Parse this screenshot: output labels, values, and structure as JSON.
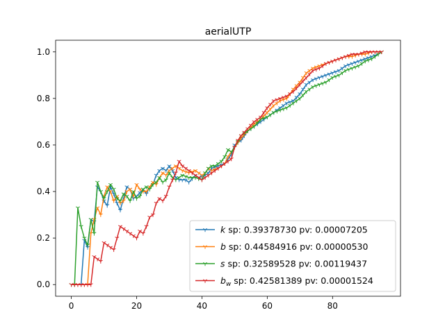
{
  "chart_data": {
    "type": "line",
    "title": "aerialUTP",
    "xlabel": "",
    "ylabel": "",
    "xlim": [
      -4.8,
      100.8
    ],
    "ylim": [
      -0.05,
      1.05
    ],
    "xticks": [
      0,
      20,
      40,
      60,
      80
    ],
    "yticks": [
      0.0,
      0.2,
      0.4,
      0.6,
      0.8,
      1.0
    ],
    "xtick_labels": [
      "0",
      "20",
      "40",
      "60",
      "80"
    ],
    "ytick_labels": [
      "0.0",
      "0.2",
      "0.4",
      "0.6",
      "0.8",
      "1.0"
    ],
    "grid": false,
    "legend_position": "lower-right",
    "marker": "tri_down",
    "series": [
      {
        "name": "k",
        "legend_label": {
          "var": "k",
          "sub": "",
          "rest": " sp: 0.39378730 pv: 0.00007205"
        },
        "color": "#1f77b4",
        "keypoints": [
          [
            0,
            0
          ],
          [
            2,
            0
          ],
          [
            3,
            0
          ],
          [
            4,
            0.19
          ],
          [
            5,
            0.16
          ],
          [
            6,
            0.28
          ],
          [
            7,
            0.27
          ],
          [
            8,
            0.42
          ],
          [
            9,
            0.4
          ],
          [
            10,
            0.36
          ],
          [
            11,
            0.34
          ],
          [
            12,
            0.42
          ],
          [
            13,
            0.39
          ],
          [
            14,
            0.35
          ],
          [
            15,
            0.32
          ],
          [
            16,
            0.37
          ],
          [
            17,
            0.42
          ],
          [
            18,
            0.41
          ],
          [
            19,
            0.37
          ],
          [
            20,
            0.38
          ],
          [
            22,
            0.41
          ],
          [
            23,
            0.39
          ],
          [
            24,
            0.42
          ],
          [
            25,
            0.43
          ],
          [
            26,
            0.47
          ],
          [
            27,
            0.49
          ],
          [
            28,
            0.5
          ],
          [
            29,
            0.49
          ],
          [
            30,
            0.51
          ],
          [
            31,
            0.49
          ],
          [
            32,
            0.46
          ],
          [
            33,
            0.45
          ],
          [
            35,
            0.45
          ],
          [
            36,
            0.44
          ],
          [
            38,
            0.47
          ],
          [
            39,
            0.46
          ],
          [
            41,
            0.47
          ],
          [
            42,
            0.48
          ],
          [
            43,
            0.5
          ],
          [
            45,
            0.51
          ],
          [
            47,
            0.52
          ],
          [
            48,
            0.54
          ],
          [
            49,
            0.56
          ],
          [
            50,
            0.6
          ],
          [
            52,
            0.62
          ],
          [
            54,
            0.66
          ],
          [
            56,
            0.68
          ],
          [
            58,
            0.7
          ],
          [
            60,
            0.72
          ],
          [
            62,
            0.74
          ],
          [
            64,
            0.76
          ],
          [
            66,
            0.78
          ],
          [
            68,
            0.79
          ],
          [
            70,
            0.82
          ],
          [
            72,
            0.86
          ],
          [
            74,
            0.88
          ],
          [
            76,
            0.89
          ],
          [
            78,
            0.9
          ],
          [
            80,
            0.91
          ],
          [
            82,
            0.92
          ],
          [
            84,
            0.94
          ],
          [
            86,
            0.95
          ],
          [
            88,
            0.96
          ],
          [
            90,
            0.97
          ],
          [
            92,
            0.98
          ],
          [
            94,
            0.99
          ],
          [
            95,
            1.0
          ]
        ]
      },
      {
        "name": "b",
        "legend_label": {
          "var": "b",
          "sub": "",
          "rest": " sp: 0.44584916 pv: 0.00000530"
        },
        "color": "#ff7f0e",
        "keypoints": [
          [
            0,
            0
          ],
          [
            4,
            0
          ],
          [
            5,
            0
          ],
          [
            6,
            0.22
          ],
          [
            7,
            0.28
          ],
          [
            8,
            0.33
          ],
          [
            9,
            0.3
          ],
          [
            10,
            0.38
          ],
          [
            11,
            0.42
          ],
          [
            12,
            0.4
          ],
          [
            13,
            0.36
          ],
          [
            14,
            0.38
          ],
          [
            15,
            0.35
          ],
          [
            16,
            0.36
          ],
          [
            17,
            0.4
          ],
          [
            18,
            0.41
          ],
          [
            19,
            0.38
          ],
          [
            20,
            0.43
          ],
          [
            21,
            0.41
          ],
          [
            22,
            0.4
          ],
          [
            23,
            0.4
          ],
          [
            24,
            0.42
          ],
          [
            25,
            0.44
          ],
          [
            26,
            0.43
          ],
          [
            27,
            0.46
          ],
          [
            28,
            0.48
          ],
          [
            29,
            0.47
          ],
          [
            30,
            0.49
          ],
          [
            32,
            0.51
          ],
          [
            34,
            0.49
          ],
          [
            36,
            0.48
          ],
          [
            38,
            0.49
          ],
          [
            39,
            0.48
          ],
          [
            40,
            0.47
          ],
          [
            41,
            0.48
          ],
          [
            42,
            0.5
          ],
          [
            43,
            0.49
          ],
          [
            45,
            0.5
          ],
          [
            47,
            0.52
          ],
          [
            48,
            0.55
          ],
          [
            49,
            0.57
          ],
          [
            50,
            0.59
          ],
          [
            52,
            0.63
          ],
          [
            54,
            0.66
          ],
          [
            56,
            0.69
          ],
          [
            58,
            0.71
          ],
          [
            60,
            0.74
          ],
          [
            62,
            0.77
          ],
          [
            64,
            0.79
          ],
          [
            66,
            0.8
          ],
          [
            68,
            0.84
          ],
          [
            70,
            0.87
          ],
          [
            72,
            0.91
          ],
          [
            74,
            0.93
          ],
          [
            76,
            0.94
          ],
          [
            78,
            0.95
          ],
          [
            80,
            0.96
          ],
          [
            82,
            0.97
          ],
          [
            84,
            0.98
          ],
          [
            86,
            0.98
          ],
          [
            88,
            0.99
          ],
          [
            90,
            0.99
          ],
          [
            92,
            1.0
          ],
          [
            95,
            1.0
          ]
        ]
      },
      {
        "name": "s",
        "legend_label": {
          "var": "s",
          "sub": "",
          "rest": " sp: 0.32589528 pv: 0.00119437"
        },
        "color": "#2ca02c",
        "keypoints": [
          [
            0,
            0
          ],
          [
            1,
            0
          ],
          [
            2,
            0.33
          ],
          [
            3,
            0.25
          ],
          [
            4,
            0.2
          ],
          [
            5,
            0.17
          ],
          [
            6,
            0.28
          ],
          [
            7,
            0.22
          ],
          [
            8,
            0.44
          ],
          [
            9,
            0.4
          ],
          [
            10,
            0.37
          ],
          [
            11,
            0.4
          ],
          [
            12,
            0.43
          ],
          [
            13,
            0.41
          ],
          [
            14,
            0.37
          ],
          [
            15,
            0.36
          ],
          [
            16,
            0.39
          ],
          [
            17,
            0.38
          ],
          [
            18,
            0.36
          ],
          [
            19,
            0.4
          ],
          [
            20,
            0.37
          ],
          [
            21,
            0.38
          ],
          [
            22,
            0.41
          ],
          [
            23,
            0.42
          ],
          [
            24,
            0.41
          ],
          [
            25,
            0.43
          ],
          [
            26,
            0.44
          ],
          [
            27,
            0.46
          ],
          [
            28,
            0.44
          ],
          [
            29,
            0.45
          ],
          [
            30,
            0.48
          ],
          [
            31,
            0.46
          ],
          [
            32,
            0.45
          ],
          [
            34,
            0.47
          ],
          [
            36,
            0.46
          ],
          [
            38,
            0.46
          ],
          [
            40,
            0.45
          ],
          [
            41,
            0.48
          ],
          [
            42,
            0.5
          ],
          [
            43,
            0.51
          ],
          [
            44,
            0.51
          ],
          [
            46,
            0.53
          ],
          [
            47,
            0.55
          ],
          [
            48,
            0.58
          ],
          [
            49,
            0.57
          ],
          [
            50,
            0.59
          ],
          [
            52,
            0.64
          ],
          [
            54,
            0.66
          ],
          [
            56,
            0.68
          ],
          [
            58,
            0.71
          ],
          [
            60,
            0.72
          ],
          [
            62,
            0.74
          ],
          [
            64,
            0.75
          ],
          [
            66,
            0.76
          ],
          [
            68,
            0.78
          ],
          [
            70,
            0.8
          ],
          [
            72,
            0.83
          ],
          [
            74,
            0.85
          ],
          [
            76,
            0.86
          ],
          [
            78,
            0.87
          ],
          [
            80,
            0.89
          ],
          [
            82,
            0.9
          ],
          [
            84,
            0.92
          ],
          [
            86,
            0.93
          ],
          [
            88,
            0.94
          ],
          [
            90,
            0.96
          ],
          [
            92,
            0.97
          ],
          [
            94,
            0.99
          ],
          [
            95,
            1.0
          ]
        ]
      },
      {
        "name": "b_w",
        "legend_label": {
          "var": "b",
          "sub": "w",
          "rest": " sp: 0.42581389 pv: 0.00001524"
        },
        "color": "#d62728",
        "keypoints": [
          [
            0,
            0
          ],
          [
            3,
            0
          ],
          [
            5,
            0
          ],
          [
            6,
            0
          ],
          [
            7,
            0.12
          ],
          [
            8,
            0.11
          ],
          [
            9,
            0.1
          ],
          [
            10,
            0.18
          ],
          [
            11,
            0.17
          ],
          [
            12,
            0.16
          ],
          [
            13,
            0.15
          ],
          [
            14,
            0.2
          ],
          [
            15,
            0.25
          ],
          [
            16,
            0.24
          ],
          [
            17,
            0.23
          ],
          [
            18,
            0.22
          ],
          [
            19,
            0.21
          ],
          [
            20,
            0.2
          ],
          [
            21,
            0.23
          ],
          [
            22,
            0.22
          ],
          [
            23,
            0.25
          ],
          [
            24,
            0.29
          ],
          [
            25,
            0.3
          ],
          [
            26,
            0.35
          ],
          [
            27,
            0.37
          ],
          [
            28,
            0.36
          ],
          [
            29,
            0.38
          ],
          [
            30,
            0.42
          ],
          [
            31,
            0.45
          ],
          [
            32,
            0.48
          ],
          [
            33,
            0.53
          ],
          [
            34,
            0.51
          ],
          [
            35,
            0.5
          ],
          [
            36,
            0.49
          ],
          [
            38,
            0.47
          ],
          [
            40,
            0.45
          ],
          [
            41,
            0.46
          ],
          [
            42,
            0.47
          ],
          [
            43,
            0.48
          ],
          [
            45,
            0.5
          ],
          [
            47,
            0.52
          ],
          [
            48,
            0.53
          ],
          [
            49,
            0.54
          ],
          [
            50,
            0.59
          ],
          [
            51,
            0.62
          ],
          [
            52,
            0.64
          ],
          [
            54,
            0.67
          ],
          [
            56,
            0.7
          ],
          [
            58,
            0.72
          ],
          [
            60,
            0.76
          ],
          [
            62,
            0.79
          ],
          [
            64,
            0.8
          ],
          [
            66,
            0.81
          ],
          [
            68,
            0.83
          ],
          [
            70,
            0.86
          ],
          [
            72,
            0.89
          ],
          [
            74,
            0.92
          ],
          [
            76,
            0.93
          ],
          [
            78,
            0.95
          ],
          [
            80,
            0.96
          ],
          [
            82,
            0.97
          ],
          [
            84,
            0.98
          ],
          [
            86,
            0.99
          ],
          [
            88,
            0.99
          ],
          [
            90,
            1.0
          ],
          [
            95,
            1.0
          ]
        ]
      }
    ]
  }
}
